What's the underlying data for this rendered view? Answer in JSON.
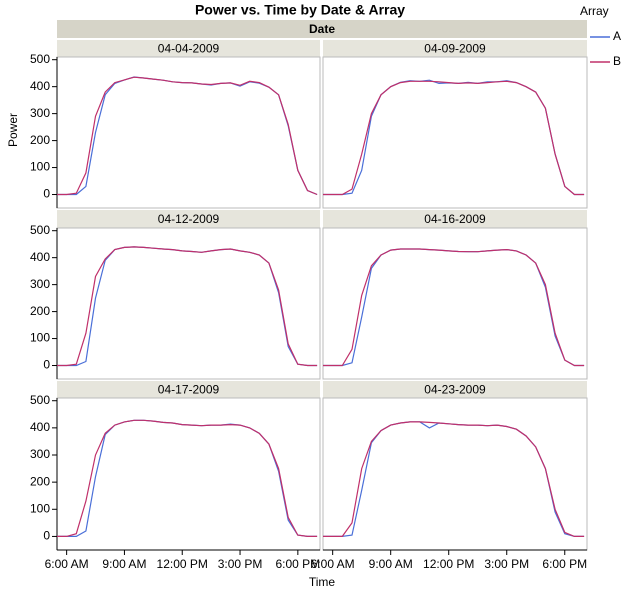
{
  "chart_data": {
    "type": "line",
    "title": "Power vs. Time by Date & Array",
    "facet_title": "Date",
    "legend_title": "Array",
    "xlabel": "Time",
    "ylabel": "Power",
    "x": [
      5.5,
      6,
      6.5,
      7,
      7.5,
      8,
      8.5,
      9,
      9.5,
      10,
      10.5,
      11,
      11.5,
      12,
      12.5,
      13,
      13.5,
      14,
      14.5,
      15,
      15.5,
      16,
      16.5,
      17,
      17.5,
      18,
      18.5,
      19
    ],
    "xlim": [
      5.5,
      19.15
    ],
    "xticks": [
      {
        "value": 6,
        "label": "6:00 AM"
      },
      {
        "value": 9,
        "label": "9:00 AM"
      },
      {
        "value": 12,
        "label": "12:00 PM"
      },
      {
        "value": 15,
        "label": "3:00 PM"
      },
      {
        "value": 18,
        "label": "6:00 PM"
      }
    ],
    "ylim": [
      -50,
      510
    ],
    "yticks": [
      0,
      100,
      200,
      300,
      400,
      500
    ],
    "series_names": [
      "A",
      "B"
    ],
    "colors": [
      "#4a6fd8",
      "#c0306a"
    ],
    "panels": [
      {
        "title": "04-04-2009",
        "series": [
          {
            "name": "A",
            "color": "#4a6fd8",
            "values": [
              0,
              0,
              0,
              30,
              230,
              370,
              412,
              425,
              436,
              432,
              428,
              424,
              418,
              415,
              414,
              410,
              406,
              412,
              414,
              402,
              418,
              413,
              398,
              370,
              255,
              90,
              15,
              0
            ]
          },
          {
            "name": "B",
            "color": "#c0306a",
            "values": [
              0,
              0,
              5,
              80,
              290,
              380,
              415,
              425,
              435,
              432,
              428,
              424,
              418,
              415,
              414,
              410,
              408,
              412,
              414,
              405,
              420,
              415,
              398,
              370,
              260,
              90,
              15,
              0
            ]
          }
        ]
      },
      {
        "title": "04-09-2009",
        "series": [
          {
            "name": "A",
            "color": "#4a6fd8",
            "values": [
              0,
              0,
              0,
              5,
              90,
              290,
              370,
              400,
              416,
              422,
              420,
              424,
              412,
              414,
              412,
              416,
              412,
              418,
              418,
              422,
              415,
              400,
              380,
              320,
              150,
              30,
              0,
              0
            ]
          },
          {
            "name": "B",
            "color": "#c0306a",
            "values": [
              0,
              0,
              0,
              20,
              150,
              300,
              370,
              400,
              415,
              420,
              420,
              420,
              418,
              415,
              412,
              414,
              412,
              415,
              418,
              420,
              415,
              400,
              380,
              320,
              150,
              30,
              0,
              0
            ]
          }
        ]
      },
      {
        "title": "04-12-2009",
        "series": [
          {
            "name": "A",
            "color": "#4a6fd8",
            "values": [
              0,
              0,
              0,
              15,
              250,
              390,
              430,
              438,
              440,
              438,
              435,
              432,
              430,
              425,
              423,
              420,
              425,
              430,
              432,
              425,
              420,
              410,
              380,
              270,
              70,
              5,
              0,
              0
            ]
          },
          {
            "name": "B",
            "color": "#c0306a",
            "values": [
              0,
              0,
              5,
              120,
              330,
              395,
              430,
              438,
              440,
              438,
              435,
              432,
              430,
              425,
              423,
              420,
              425,
              430,
              432,
              425,
              420,
              410,
              380,
              280,
              80,
              5,
              0,
              0
            ]
          }
        ]
      },
      {
        "title": "04-16-2009",
        "series": [
          {
            "name": "A",
            "color": "#4a6fd8",
            "values": [
              0,
              0,
              0,
              10,
              180,
              360,
              410,
              428,
              432,
              432,
              432,
              430,
              428,
              425,
              423,
              422,
              422,
              425,
              428,
              430,
              425,
              410,
              380,
              290,
              110,
              20,
              0,
              0
            ]
          },
          {
            "name": "B",
            "color": "#c0306a",
            "values": [
              0,
              0,
              0,
              60,
              260,
              370,
              410,
              428,
              432,
              432,
              432,
              430,
              428,
              425,
              423,
              422,
              422,
              425,
              428,
              430,
              425,
              410,
              380,
              300,
              120,
              20,
              0,
              0
            ]
          }
        ]
      },
      {
        "title": "04-17-2009",
        "series": [
          {
            "name": "A",
            "color": "#4a6fd8",
            "values": [
              0,
              0,
              0,
              20,
              220,
              375,
              410,
              422,
              428,
              428,
              425,
              420,
              418,
              412,
              410,
              408,
              410,
              410,
              414,
              410,
              400,
              380,
              340,
              240,
              60,
              5,
              0,
              0
            ]
          },
          {
            "name": "B",
            "color": "#c0306a",
            "values": [
              0,
              0,
              10,
              130,
              300,
              380,
              410,
              422,
              428,
              428,
              425,
              420,
              418,
              412,
              410,
              408,
              410,
              410,
              412,
              410,
              400,
              380,
              340,
              250,
              70,
              5,
              0,
              0
            ]
          }
        ]
      },
      {
        "title": "04-23-2009",
        "series": [
          {
            "name": "A",
            "color": "#4a6fd8",
            "values": [
              0,
              0,
              0,
              5,
              170,
              345,
              390,
              410,
              418,
              422,
              422,
              400,
              418,
              415,
              412,
              410,
              410,
              408,
              410,
              405,
              395,
              370,
              330,
              250,
              90,
              10,
              0,
              0
            ]
          },
          {
            "name": "B",
            "color": "#c0306a",
            "values": [
              0,
              0,
              0,
              50,
              250,
              350,
              390,
              410,
              418,
              422,
              422,
              420,
              418,
              415,
              412,
              410,
              410,
              408,
              410,
              405,
              395,
              370,
              330,
              250,
              100,
              15,
              0,
              0
            ]
          }
        ]
      }
    ]
  }
}
